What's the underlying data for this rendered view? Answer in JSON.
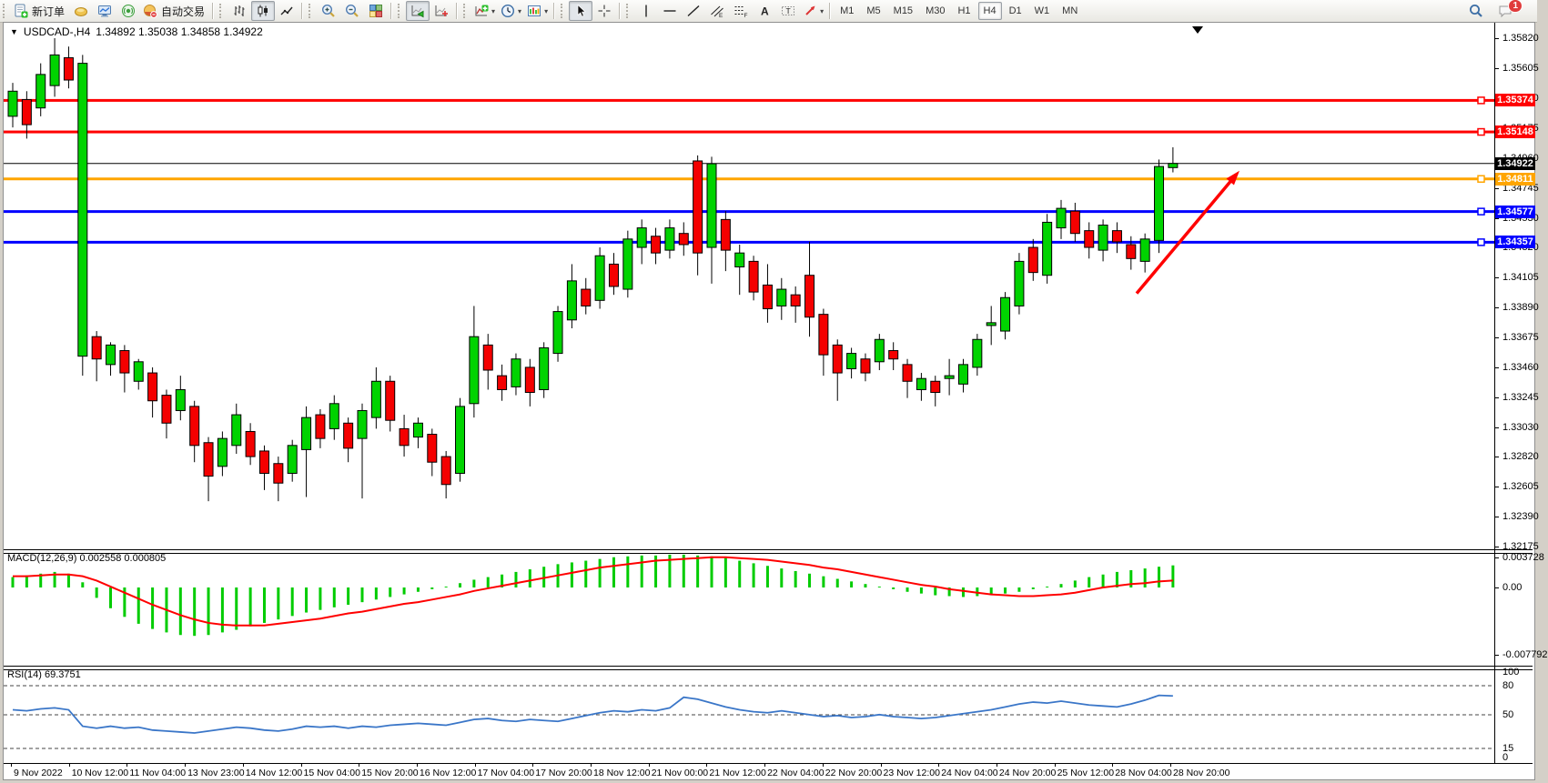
{
  "toolbar": {
    "new_order_label": "新订单",
    "auto_trading_label": "自动交易",
    "groups": [
      {
        "items": [
          {
            "icon": "new-order",
            "name": "new-order-button",
            "labelKey": "new_order_label"
          },
          {
            "icon": "gold",
            "name": "deposit-button"
          },
          {
            "icon": "monitor",
            "name": "terminal-button"
          },
          {
            "icon": "signal",
            "name": "signals-button"
          },
          {
            "icon": "globe",
            "name": "auto-trading-button",
            "labelKey": "auto_trading_label"
          }
        ]
      },
      {
        "items": [
          {
            "icon": "bars",
            "name": "bar-chart-button"
          },
          {
            "icon": "candles",
            "name": "candlestick-chart-button",
            "active": true
          },
          {
            "icon": "line",
            "name": "line-chart-button"
          }
        ]
      },
      {
        "items": [
          {
            "icon": "zoom-in",
            "name": "zoom-in-button"
          },
          {
            "icon": "zoom-out",
            "name": "zoom-out-button"
          },
          {
            "icon": "tile",
            "name": "tile-windows-button"
          }
        ]
      },
      {
        "items": [
          {
            "icon": "autoscroll",
            "name": "auto-scroll-button",
            "active": true
          },
          {
            "icon": "shift",
            "name": "chart-shift-button"
          }
        ]
      },
      {
        "items": [
          {
            "icon": "add-ind",
            "name": "indicators-button",
            "dropdown": true
          },
          {
            "icon": "clock",
            "name": "periods-button",
            "dropdown": true
          },
          {
            "icon": "template",
            "name": "templates-button",
            "dropdown": true
          }
        ]
      },
      {
        "items": [
          {
            "icon": "cursor",
            "name": "cursor-button",
            "active": true
          },
          {
            "icon": "crosshair",
            "name": "crosshair-button"
          }
        ]
      },
      {
        "items": [
          {
            "icon": "vline",
            "name": "vertical-line-button"
          },
          {
            "icon": "hline",
            "name": "horizontal-line-button"
          },
          {
            "icon": "trend",
            "name": "trendline-button"
          },
          {
            "icon": "channel",
            "name": "equidistant-channel-button"
          },
          {
            "icon": "fibo",
            "name": "fibonacci-button"
          },
          {
            "icon": "text-a",
            "name": "text-button"
          },
          {
            "icon": "label-t",
            "name": "text-label-button"
          },
          {
            "icon": "shapes",
            "name": "arrows-button",
            "dropdown": true
          }
        ]
      }
    ],
    "timeframes": [
      "M1",
      "M5",
      "M15",
      "M30",
      "H1",
      "H4",
      "D1",
      "W1",
      "MN"
    ],
    "active_timeframe": "H4",
    "chat_badge": "1"
  },
  "chart": {
    "title": "USDCAD-,H4",
    "ohlc_display": "1.34892 1.35038 1.34858 1.34922",
    "macd_header": "MACD(12,26,9) 0.002558 0.000805",
    "rsi_header": "RSI(14) 69.3751"
  },
  "price_axis": {
    "ticks": [
      "1.35820",
      "1.35605",
      "1.35390",
      "1.35175",
      "1.34960",
      "1.34745",
      "1.34530",
      "1.34320",
      "1.34105",
      "1.33890",
      "1.33675",
      "1.33460",
      "1.33245",
      "1.33030",
      "1.32820",
      "1.32605",
      "1.32390",
      "1.32175"
    ]
  },
  "time_axis": {
    "labels": [
      "9 Nov 2022",
      "10 Nov 12:00",
      "11 Nov 04:00",
      "13 Nov 23:00",
      "14 Nov 12:00",
      "15 Nov 04:00",
      "15 Nov 20:00",
      "16 Nov 12:00",
      "17 Nov 04:00",
      "17 Nov 20:00",
      "18 Nov 12:00",
      "21 Nov 00:00",
      "21 Nov 12:00",
      "22 Nov 04:00",
      "22 Nov 20:00",
      "23 Nov 12:00",
      "24 Nov 04:00",
      "24 Nov 20:00",
      "25 Nov 12:00",
      "28 Nov 04:00",
      "28 Nov 20:00"
    ]
  },
  "colors": {
    "bull": "#00D300",
    "bear": "#F40000",
    "macd_bar": "#00CC00",
    "macd_signal": "#FF0000",
    "rsi_line": "#3A76C8",
    "resistance": "#FF0000",
    "pivot": "#FFA500",
    "support": "#0000FF",
    "current": "#000000",
    "arrow": "#FF0000"
  },
  "chart_data": {
    "type": "candlestick",
    "symbol": "USDCAD",
    "timeframe": "H4",
    "last_bar": {
      "open": 1.34892,
      "high": 1.35038,
      "low": 1.34858,
      "close": 1.34922
    },
    "y_axis_range": {
      "top": 1.35931,
      "bottom": 1.32155
    },
    "hlines": [
      {
        "price": 1.35374,
        "label": "1.35374",
        "color": "#FF0000",
        "kind": "resistance"
      },
      {
        "price": 1.35148,
        "label": "1.35148",
        "color": "#FF0000",
        "kind": "resistance"
      },
      {
        "price": 1.34811,
        "label": "1.34811",
        "color": "#FFA500",
        "kind": "pivot"
      },
      {
        "price": 1.34577,
        "label": "1.34577",
        "color": "#0000FF",
        "kind": "support"
      },
      {
        "price": 1.34357,
        "label": "1.34357",
        "color": "#0000FF",
        "kind": "support"
      }
    ],
    "current_price": {
      "price": 1.34922,
      "label": "1.34922"
    },
    "candles_ohlc": [
      [
        1.3526,
        1.355,
        1.3518,
        1.3544
      ],
      [
        1.3538,
        1.3544,
        1.351,
        1.352
      ],
      [
        1.3532,
        1.3564,
        1.3526,
        1.3556
      ],
      [
        1.3548,
        1.3582,
        1.354,
        1.357
      ],
      [
        1.3568,
        1.3576,
        1.3546,
        1.3552
      ],
      [
        1.3354,
        1.357,
        1.334,
        1.3564
      ],
      [
        1.3368,
        1.3372,
        1.3336,
        1.3352
      ],
      [
        1.3348,
        1.3364,
        1.334,
        1.3362
      ],
      [
        1.3358,
        1.3362,
        1.3328,
        1.3342
      ],
      [
        1.3336,
        1.3352,
        1.333,
        1.335
      ],
      [
        1.3342,
        1.3346,
        1.331,
        1.3322
      ],
      [
        1.3326,
        1.333,
        1.3295,
        1.3306
      ],
      [
        1.3315,
        1.334,
        1.3308,
        1.333
      ],
      [
        1.3318,
        1.3322,
        1.3278,
        1.329
      ],
      [
        1.3292,
        1.3296,
        1.325,
        1.3268
      ],
      [
        1.3275,
        1.33,
        1.3268,
        1.3295
      ],
      [
        1.329,
        1.332,
        1.3284,
        1.3312
      ],
      [
        1.33,
        1.3306,
        1.3276,
        1.3282
      ],
      [
        1.3286,
        1.329,
        1.3258,
        1.327
      ],
      [
        1.3277,
        1.3282,
        1.325,
        1.3263
      ],
      [
        1.327,
        1.3294,
        1.3264,
        1.329
      ],
      [
        1.3287,
        1.3318,
        1.3253,
        1.331
      ],
      [
        1.3312,
        1.3316,
        1.3288,
        1.3295
      ],
      [
        1.3302,
        1.3326,
        1.3294,
        1.332
      ],
      [
        1.3306,
        1.331,
        1.3278,
        1.3288
      ],
      [
        1.3295,
        1.332,
        1.3252,
        1.3315
      ],
      [
        1.331,
        1.3346,
        1.3302,
        1.3336
      ],
      [
        1.3336,
        1.334,
        1.33,
        1.3308
      ],
      [
        1.3302,
        1.3312,
        1.3282,
        1.329
      ],
      [
        1.3296,
        1.331,
        1.3288,
        1.3306
      ],
      [
        1.3298,
        1.3302,
        1.3268,
        1.3278
      ],
      [
        1.3282,
        1.3286,
        1.3252,
        1.3262
      ],
      [
        1.327,
        1.3324,
        1.3264,
        1.3318
      ],
      [
        1.332,
        1.339,
        1.331,
        1.3368
      ],
      [
        1.3362,
        1.337,
        1.333,
        1.3344
      ],
      [
        1.334,
        1.3348,
        1.3322,
        1.333
      ],
      [
        1.3332,
        1.3356,
        1.3326,
        1.3352
      ],
      [
        1.3346,
        1.3352,
        1.3318,
        1.3328
      ],
      [
        1.333,
        1.3364,
        1.3324,
        1.336
      ],
      [
        1.3356,
        1.339,
        1.335,
        1.3386
      ],
      [
        1.338,
        1.342,
        1.3374,
        1.3408
      ],
      [
        1.3402,
        1.341,
        1.3384,
        1.339
      ],
      [
        1.3394,
        1.3432,
        1.3388,
        1.3426
      ],
      [
        1.342,
        1.3428,
        1.3398,
        1.3404
      ],
      [
        1.3402,
        1.3444,
        1.3396,
        1.3438
      ],
      [
        1.3432,
        1.3452,
        1.342,
        1.3446
      ],
      [
        1.344,
        1.3446,
        1.342,
        1.3428
      ],
      [
        1.343,
        1.3452,
        1.3424,
        1.3446
      ],
      [
        1.3442,
        1.345,
        1.3426,
        1.3434
      ],
      [
        1.3494,
        1.3498,
        1.3412,
        1.3428
      ],
      [
        1.3432,
        1.3497,
        1.3406,
        1.3492
      ],
      [
        1.3452,
        1.3458,
        1.3415,
        1.343
      ],
      [
        1.3418,
        1.3434,
        1.3398,
        1.3428
      ],
      [
        1.3422,
        1.3426,
        1.3394,
        1.34
      ],
      [
        1.3405,
        1.342,
        1.3378,
        1.3388
      ],
      [
        1.339,
        1.341,
        1.338,
        1.3402
      ],
      [
        1.3398,
        1.3404,
        1.3378,
        1.339
      ],
      [
        1.3412,
        1.3436,
        1.3368,
        1.3382
      ],
      [
        1.3384,
        1.3388,
        1.334,
        1.3355
      ],
      [
        1.3362,
        1.3366,
        1.3322,
        1.3342
      ],
      [
        1.3345,
        1.336,
        1.3338,
        1.3356
      ],
      [
        1.3352,
        1.3356,
        1.3336,
        1.3342
      ],
      [
        1.335,
        1.337,
        1.3344,
        1.3366
      ],
      [
        1.3358,
        1.3364,
        1.3344,
        1.3352
      ],
      [
        1.3348,
        1.3352,
        1.3324,
        1.3336
      ],
      [
        1.333,
        1.3342,
        1.3322,
        1.3338
      ],
      [
        1.3336,
        1.334,
        1.3318,
        1.3328
      ],
      [
        1.3338,
        1.3352,
        1.3326,
        1.334
      ],
      [
        1.3334,
        1.3352,
        1.3328,
        1.3348
      ],
      [
        1.3346,
        1.337,
        1.334,
        1.3366
      ],
      [
        1.3376,
        1.339,
        1.3362,
        1.3378
      ],
      [
        1.3372,
        1.34,
        1.3366,
        1.3396
      ],
      [
        1.339,
        1.3428,
        1.3384,
        1.3422
      ],
      [
        1.3432,
        1.3438,
        1.3408,
        1.3414
      ],
      [
        1.3412,
        1.3456,
        1.3406,
        1.345
      ],
      [
        1.3446,
        1.3466,
        1.3438,
        1.346
      ],
      [
        1.3458,
        1.3464,
        1.3436,
        1.3442
      ],
      [
        1.3444,
        1.345,
        1.3424,
        1.3432
      ],
      [
        1.343,
        1.3452,
        1.3422,
        1.3448
      ],
      [
        1.3444,
        1.345,
        1.3428,
        1.3436
      ],
      [
        1.3434,
        1.344,
        1.3416,
        1.3424
      ],
      [
        1.3422,
        1.3442,
        1.3414,
        1.3438
      ],
      [
        1.3437,
        1.3495,
        1.3428,
        1.349
      ],
      [
        1.34892,
        1.35038,
        1.34858,
        1.34922
      ]
    ],
    "macd": {
      "params": "12,26,9",
      "value": 0.002558,
      "signal_value": 0.000805,
      "scale_labels": [
        "0.003728",
        "0.00",
        "-0.007792"
      ],
      "hist": [
        0.0012,
        0.0014,
        0.0016,
        0.0018,
        0.0016,
        0.0006,
        -0.0012,
        -0.0024,
        -0.0034,
        -0.0042,
        -0.0048,
        -0.0052,
        -0.0055,
        -0.0056,
        -0.0055,
        -0.0052,
        -0.0049,
        -0.0045,
        -0.0041,
        -0.0037,
        -0.0033,
        -0.0029,
        -0.0026,
        -0.0023,
        -0.002,
        -0.0017,
        -0.0014,
        -0.0011,
        -0.0008,
        -0.0005,
        -0.0002,
        0.0001,
        0.0005,
        0.0009,
        0.0012,
        0.0015,
        0.0018,
        0.0021,
        0.0024,
        0.0027,
        0.0029,
        0.0031,
        0.0033,
        0.0035,
        0.0036,
        0.0037,
        0.0037,
        0.0038,
        0.0038,
        0.0037,
        0.0036,
        0.0034,
        0.0031,
        0.0028,
        0.0025,
        0.0022,
        0.0019,
        0.0016,
        0.0013,
        0.001,
        0.0007,
        0.0004,
        0.0001,
        -0.0002,
        -0.0005,
        -0.0007,
        -0.0009,
        -0.001,
        -0.0011,
        -0.001,
        -0.0009,
        -0.0007,
        -0.0005,
        -0.0002,
        0.0001,
        0.0004,
        0.0008,
        0.0012,
        0.0015,
        0.0018,
        0.002,
        0.0022,
        0.0024,
        0.002558
      ],
      "signal": [
        0.0013,
        0.0013,
        0.0014,
        0.0015,
        0.0015,
        0.0013,
        0.0008,
        0.0001,
        -0.0006,
        -0.0013,
        -0.002,
        -0.0026,
        -0.0032,
        -0.0037,
        -0.0041,
        -0.0043,
        -0.0044,
        -0.0044,
        -0.0044,
        -0.0042,
        -0.004,
        -0.0038,
        -0.0036,
        -0.0033,
        -0.003,
        -0.0028,
        -0.0025,
        -0.0022,
        -0.0019,
        -0.0017,
        -0.0014,
        -0.0011,
        -0.0008,
        -0.0004,
        -0.0001,
        0.0002,
        0.0005,
        0.0008,
        0.0011,
        0.0014,
        0.0017,
        0.002,
        0.0023,
        0.0025,
        0.0027,
        0.0029,
        0.0031,
        0.0032,
        0.0033,
        0.0034,
        0.0035,
        0.0035,
        0.0034,
        0.0033,
        0.0032,
        0.003,
        0.0028,
        0.0026,
        0.0023,
        0.0021,
        0.0018,
        0.0015,
        0.0012,
        0.0009,
        0.0006,
        0.0003,
        0.0001,
        -0.0002,
        -0.0004,
        -0.0006,
        -0.0008,
        -0.0009,
        -0.001,
        -0.001,
        -0.0009,
        -0.0008,
        -0.0006,
        -0.0003,
        0.0,
        0.0002,
        0.0004,
        0.0005,
        0.0007,
        0.0008
      ]
    },
    "rsi": {
      "period": 14,
      "value": 69.3751,
      "levels": [
        "100",
        "80",
        "50",
        "15",
        "0"
      ],
      "values": [
        55,
        54,
        56,
        57,
        55,
        38,
        36,
        38,
        36,
        37,
        34,
        33,
        32,
        31,
        33,
        35,
        37,
        36,
        34,
        33,
        35,
        38,
        37,
        38,
        36,
        38,
        37,
        39,
        40,
        41,
        40,
        39,
        42,
        45,
        46,
        44,
        43,
        45,
        44,
        43,
        46,
        49,
        52,
        54,
        53,
        55,
        54,
        57,
        68,
        66,
        62,
        58,
        55,
        53,
        52,
        54,
        52,
        50,
        48,
        49,
        47,
        48,
        50,
        48,
        47,
        46,
        47,
        49,
        51,
        53,
        55,
        58,
        61,
        63,
        62,
        64,
        62,
        60,
        59,
        58,
        61,
        65,
        70,
        69.4
      ]
    },
    "annotation_arrow": {
      "from_price": 1.3399,
      "to_price": 1.3487,
      "color": "#FF0000"
    }
  }
}
